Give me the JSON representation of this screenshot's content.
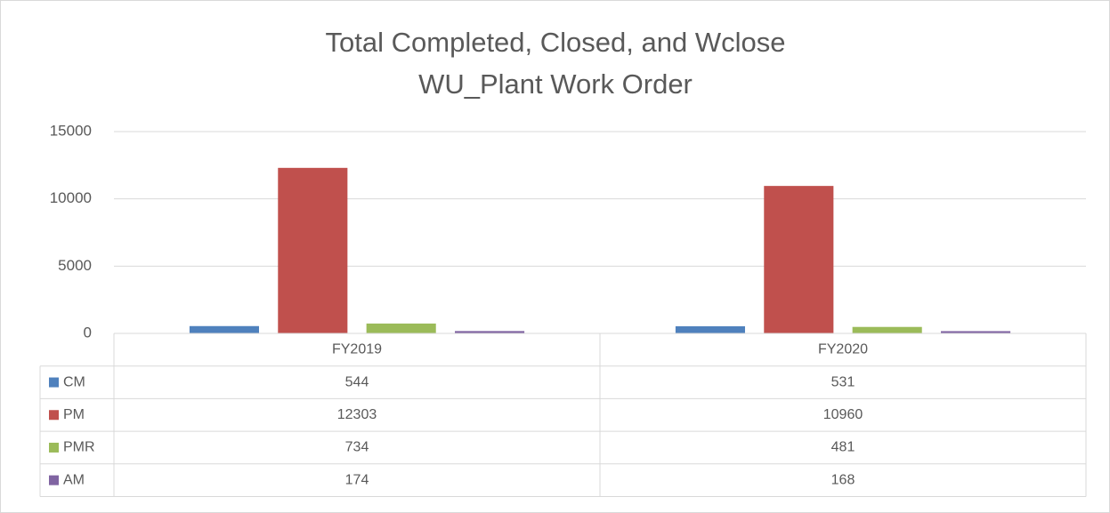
{
  "chart_data": {
    "type": "bar",
    "title": [
      "Total Completed, Closed, and Wclose",
      "WU_Plant Work Order"
    ],
    "categories": [
      "FY2019",
      "FY2020"
    ],
    "series": [
      {
        "name": "CM",
        "color": "#4f81bd",
        "values": [
          544,
          531
        ]
      },
      {
        "name": "PM",
        "color": "#c0504d",
        "values": [
          12303,
          10960
        ]
      },
      {
        "name": "PMR",
        "color": "#9bbb59",
        "values": [
          734,
          481
        ]
      },
      {
        "name": "AM",
        "color": "#8064a2",
        "values": [
          174,
          168
        ]
      }
    ],
    "ylim": [
      0,
      15000
    ],
    "yticks": [
      0,
      5000,
      10000,
      15000
    ],
    "grid": true,
    "data_table": true
  }
}
